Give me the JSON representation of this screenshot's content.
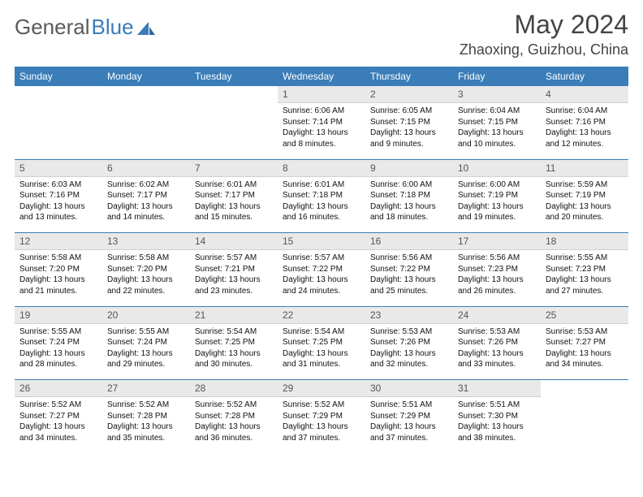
{
  "brand": {
    "part1": "General",
    "part2": "Blue"
  },
  "title": "May 2024",
  "location": "Zhaoxing, Guizhou, China",
  "colors": {
    "header_blue": "#3a7db8",
    "daybar_bg": "#e9e9e9",
    "text_gray": "#444444",
    "week_sep": "#3a7db8"
  },
  "dayHeaders": [
    "Sunday",
    "Monday",
    "Tuesday",
    "Wednesday",
    "Thursday",
    "Friday",
    "Saturday"
  ],
  "weeks": [
    [
      null,
      null,
      null,
      {
        "n": "1",
        "sr": "6:06 AM",
        "ss": "7:14 PM",
        "dl": "13 hours and 8 minutes."
      },
      {
        "n": "2",
        "sr": "6:05 AM",
        "ss": "7:15 PM",
        "dl": "13 hours and 9 minutes."
      },
      {
        "n": "3",
        "sr": "6:04 AM",
        "ss": "7:15 PM",
        "dl": "13 hours and 10 minutes."
      },
      {
        "n": "4",
        "sr": "6:04 AM",
        "ss": "7:16 PM",
        "dl": "13 hours and 12 minutes."
      }
    ],
    [
      {
        "n": "5",
        "sr": "6:03 AM",
        "ss": "7:16 PM",
        "dl": "13 hours and 13 minutes."
      },
      {
        "n": "6",
        "sr": "6:02 AM",
        "ss": "7:17 PM",
        "dl": "13 hours and 14 minutes."
      },
      {
        "n": "7",
        "sr": "6:01 AM",
        "ss": "7:17 PM",
        "dl": "13 hours and 15 minutes."
      },
      {
        "n": "8",
        "sr": "6:01 AM",
        "ss": "7:18 PM",
        "dl": "13 hours and 16 minutes."
      },
      {
        "n": "9",
        "sr": "6:00 AM",
        "ss": "7:18 PM",
        "dl": "13 hours and 18 minutes."
      },
      {
        "n": "10",
        "sr": "6:00 AM",
        "ss": "7:19 PM",
        "dl": "13 hours and 19 minutes."
      },
      {
        "n": "11",
        "sr": "5:59 AM",
        "ss": "7:19 PM",
        "dl": "13 hours and 20 minutes."
      }
    ],
    [
      {
        "n": "12",
        "sr": "5:58 AM",
        "ss": "7:20 PM",
        "dl": "13 hours and 21 minutes."
      },
      {
        "n": "13",
        "sr": "5:58 AM",
        "ss": "7:20 PM",
        "dl": "13 hours and 22 minutes."
      },
      {
        "n": "14",
        "sr": "5:57 AM",
        "ss": "7:21 PM",
        "dl": "13 hours and 23 minutes."
      },
      {
        "n": "15",
        "sr": "5:57 AM",
        "ss": "7:22 PM",
        "dl": "13 hours and 24 minutes."
      },
      {
        "n": "16",
        "sr": "5:56 AM",
        "ss": "7:22 PM",
        "dl": "13 hours and 25 minutes."
      },
      {
        "n": "17",
        "sr": "5:56 AM",
        "ss": "7:23 PM",
        "dl": "13 hours and 26 minutes."
      },
      {
        "n": "18",
        "sr": "5:55 AM",
        "ss": "7:23 PM",
        "dl": "13 hours and 27 minutes."
      }
    ],
    [
      {
        "n": "19",
        "sr": "5:55 AM",
        "ss": "7:24 PM",
        "dl": "13 hours and 28 minutes."
      },
      {
        "n": "20",
        "sr": "5:55 AM",
        "ss": "7:24 PM",
        "dl": "13 hours and 29 minutes."
      },
      {
        "n": "21",
        "sr": "5:54 AM",
        "ss": "7:25 PM",
        "dl": "13 hours and 30 minutes."
      },
      {
        "n": "22",
        "sr": "5:54 AM",
        "ss": "7:25 PM",
        "dl": "13 hours and 31 minutes."
      },
      {
        "n": "23",
        "sr": "5:53 AM",
        "ss": "7:26 PM",
        "dl": "13 hours and 32 minutes."
      },
      {
        "n": "24",
        "sr": "5:53 AM",
        "ss": "7:26 PM",
        "dl": "13 hours and 33 minutes."
      },
      {
        "n": "25",
        "sr": "5:53 AM",
        "ss": "7:27 PM",
        "dl": "13 hours and 34 minutes."
      }
    ],
    [
      {
        "n": "26",
        "sr": "5:52 AM",
        "ss": "7:27 PM",
        "dl": "13 hours and 34 minutes."
      },
      {
        "n": "27",
        "sr": "5:52 AM",
        "ss": "7:28 PM",
        "dl": "13 hours and 35 minutes."
      },
      {
        "n": "28",
        "sr": "5:52 AM",
        "ss": "7:28 PM",
        "dl": "13 hours and 36 minutes."
      },
      {
        "n": "29",
        "sr": "5:52 AM",
        "ss": "7:29 PM",
        "dl": "13 hours and 37 minutes."
      },
      {
        "n": "30",
        "sr": "5:51 AM",
        "ss": "7:29 PM",
        "dl": "13 hours and 37 minutes."
      },
      {
        "n": "31",
        "sr": "5:51 AM",
        "ss": "7:30 PM",
        "dl": "13 hours and 38 minutes."
      },
      null
    ]
  ],
  "labels": {
    "sunrise": "Sunrise:",
    "sunset": "Sunset:",
    "daylight": "Daylight:"
  }
}
